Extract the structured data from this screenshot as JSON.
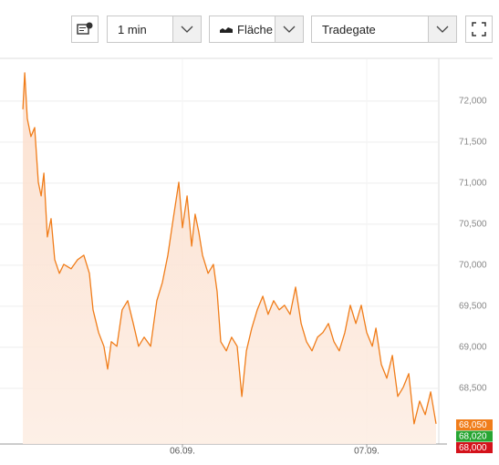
{
  "toolbar": {
    "interval": "1 min",
    "chart_type": "Fläche",
    "exchange": "Tradegate"
  },
  "chart_data": {
    "type": "area",
    "x": [
      0.134,
      0.144,
      0.158,
      0.178,
      0.198,
      0.218,
      0.233,
      0.248,
      0.267,
      0.287,
      0.307,
      0.332,
      0.356,
      0.396,
      0.431,
      0.465,
      0.495,
      0.515,
      0.545,
      0.574,
      0.594,
      0.614,
      0.644,
      0.673,
      0.703,
      0.733,
      0.762,
      0.792,
      0.827,
      0.861,
      0.891,
      0.921,
      0.95,
      0.98,
      1.0,
      1.025,
      1.05,
      1.069,
      1.089,
      1.109,
      1.139,
      1.168,
      1.188,
      1.208,
      1.238,
      1.267,
      1.297,
      1.322,
      1.347,
      1.376,
      1.406,
      1.436,
      1.465,
      1.495,
      1.525,
      1.554,
      1.584,
      1.614,
      1.644,
      1.673,
      1.703,
      1.733,
      1.762,
      1.792,
      1.822,
      1.851,
      1.881,
      1.911,
      1.941,
      1.97,
      2.0,
      2.03,
      2.05,
      2.079,
      2.109,
      2.139,
      2.168,
      2.198,
      2.228,
      2.257,
      2.287,
      2.317,
      2.347,
      2.376
    ],
    "series": [
      {
        "color": "#f07d1a",
        "values": [
          71900,
          72344,
          71789,
          71567,
          71678,
          71011,
          70844,
          71122,
          70344,
          70567,
          70067,
          69900,
          70011,
          69956,
          70067,
          70122,
          69900,
          69456,
          69178,
          69011,
          68733,
          69067,
          69011,
          69456,
          69567,
          69289,
          69011,
          69122,
          69011,
          69567,
          69789,
          70122,
          70567,
          71011,
          70456,
          70844,
          70233,
          70622,
          70400,
          70122,
          69900,
          70011,
          69678,
          69067,
          68956,
          69122,
          69011,
          68400,
          68956,
          69233,
          69456,
          69622,
          69400,
          69567,
          69456,
          69511,
          69400,
          69733,
          69289,
          69067,
          68956,
          69122,
          69178,
          69289,
          69067,
          68956,
          69178,
          69511,
          69289,
          69511,
          69178,
          69011,
          69233,
          68789,
          68622,
          68900,
          68400,
          68511,
          68678,
          68067,
          68344,
          68178,
          68456,
          68067
        ]
      }
    ],
    "xlim": [
      0.01,
      2.386
    ],
    "xticks": [
      {
        "value": 1,
        "label": "06.09."
      },
      {
        "value": 2,
        "label": "07.09."
      }
    ],
    "ylim": [
      67820,
      72510
    ],
    "yticks": [
      {
        "value": 68500,
        "label": "68,500"
      },
      {
        "value": 69000,
        "label": "69,000"
      },
      {
        "value": 69500,
        "label": "69,500"
      },
      {
        "value": 70000,
        "label": "70,000"
      },
      {
        "value": 70500,
        "label": "70,500"
      },
      {
        "value": 71000,
        "label": "71,000"
      },
      {
        "value": 71500,
        "label": "71,500"
      },
      {
        "value": 72000,
        "label": "72,000"
      }
    ],
    "grid": true,
    "price_tags": [
      {
        "label": "68,050",
        "color": "#f07d1a"
      },
      {
        "label": "68,020",
        "color": "#27a532"
      },
      {
        "label": "68,000",
        "color": "#d4121b"
      }
    ]
  }
}
